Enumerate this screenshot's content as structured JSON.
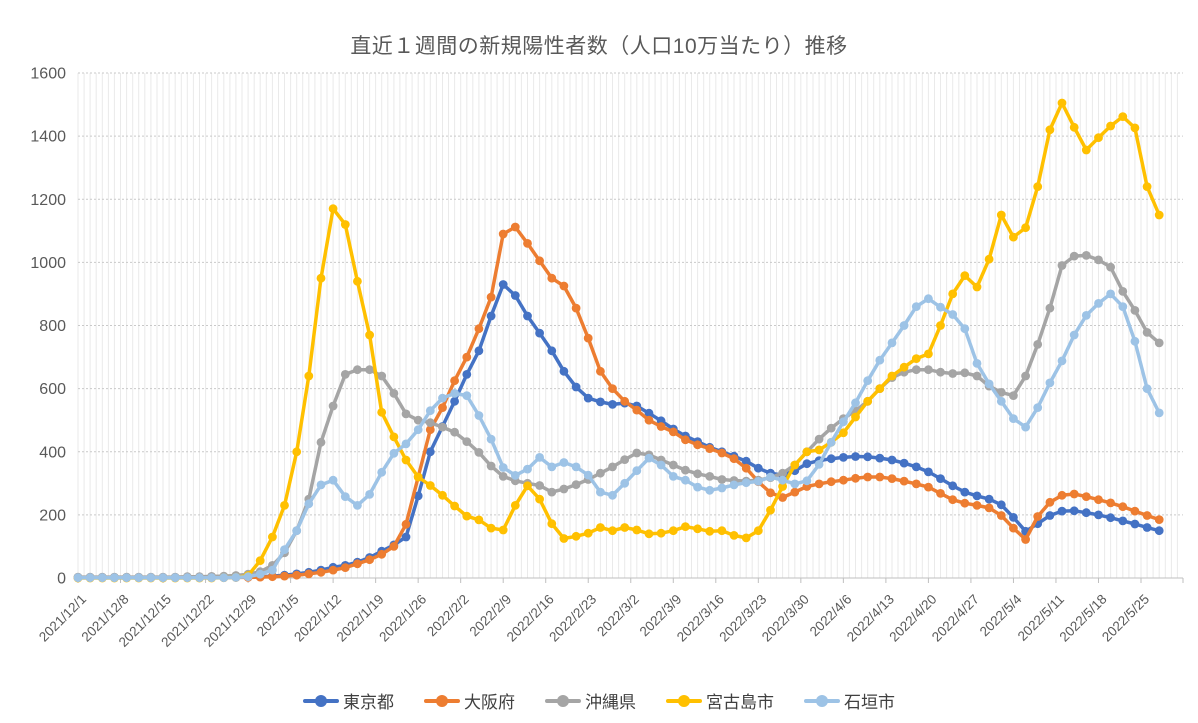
{
  "title": "直近１週間の新規陽性者数（人口10万当たり）推移",
  "y_axis": {
    "labels": [
      "0",
      "200",
      "400",
      "600",
      "800",
      "1000",
      "1200",
      "1400",
      "1600"
    ],
    "values": [
      0,
      200,
      400,
      600,
      800,
      1000,
      1200,
      1400,
      1600
    ]
  },
  "x_axis": {
    "tick_labels": [
      "2021/12/1",
      "2021/12/8",
      "2021/12/15",
      "2021/12/22",
      "2021/12/29",
      "2022/1/5",
      "2022/1/12",
      "2022/1/19",
      "2022/1/26",
      "2022/2/2",
      "2022/2/9",
      "2022/2/16",
      "2022/2/23",
      "2022/3/2",
      "2022/3/9",
      "2022/3/16",
      "2022/3/23",
      "2022/3/30",
      "2022/4/6",
      "2022/4/13",
      "2022/4/20",
      "2022/4/27",
      "2022/5/4",
      "2022/5/11",
      "2022/5/18",
      "2022/5/25"
    ],
    "tick_days": [
      0,
      7,
      14,
      21,
      28,
      35,
      42,
      49,
      56,
      63,
      70,
      77,
      84,
      91,
      98,
      105,
      112,
      119,
      126,
      133,
      140,
      147,
      154,
      161,
      168,
      175
    ]
  },
  "chart_data": {
    "type": "line",
    "title": "直近１週間の新規陽性者数（人口10万当たり）推移",
    "xlabel": "",
    "ylabel": "",
    "ylim": [
      0,
      1600
    ],
    "y_step": 200,
    "grid": "horizontal-dashed-major, vertical-light-minor-daily",
    "legend_position": "bottom",
    "x_dates": [
      "2021/12/1",
      "2021/12/3",
      "2021/12/5",
      "2021/12/7",
      "2021/12/9",
      "2021/12/11",
      "2021/12/13",
      "2021/12/15",
      "2021/12/17",
      "2021/12/19",
      "2021/12/21",
      "2021/12/23",
      "2021/12/25",
      "2021/12/27",
      "2021/12/29",
      "2021/12/31",
      "2022/1/2",
      "2022/1/4",
      "2022/1/6",
      "2022/1/8",
      "2022/1/10",
      "2022/1/12",
      "2022/1/14",
      "2022/1/16",
      "2022/1/18",
      "2022/1/20",
      "2022/1/22",
      "2022/1/24",
      "2022/1/26",
      "2022/1/28",
      "2022/1/30",
      "2022/2/1",
      "2022/2/3",
      "2022/2/5",
      "2022/2/7",
      "2022/2/9",
      "2022/2/11",
      "2022/2/13",
      "2022/2/15",
      "2022/2/17",
      "2022/2/19",
      "2022/2/21",
      "2022/2/23",
      "2022/2/25",
      "2022/2/27",
      "2022/3/1",
      "2022/3/3",
      "2022/3/5",
      "2022/3/7",
      "2022/3/9",
      "2022/3/11",
      "2022/3/13",
      "2022/3/15",
      "2022/3/17",
      "2022/3/19",
      "2022/3/21",
      "2022/3/23",
      "2022/3/25",
      "2022/3/27",
      "2022/3/29",
      "2022/3/31",
      "2022/4/2",
      "2022/4/4",
      "2022/4/6",
      "2022/4/8",
      "2022/4/10",
      "2022/4/12",
      "2022/4/14",
      "2022/4/16",
      "2022/4/18",
      "2022/4/20",
      "2022/4/22",
      "2022/4/24",
      "2022/4/26",
      "2022/4/28",
      "2022/4/30",
      "2022/5/2",
      "2022/5/4",
      "2022/5/6",
      "2022/5/8",
      "2022/5/10",
      "2022/5/12",
      "2022/5/14",
      "2022/5/16",
      "2022/5/18",
      "2022/5/20",
      "2022/5/22",
      "2022/5/24",
      "2022/5/26",
      "2022/5/28"
    ],
    "day_index": [
      0,
      2,
      4,
      6,
      8,
      10,
      12,
      14,
      16,
      18,
      20,
      22,
      24,
      26,
      28,
      30,
      32,
      34,
      36,
      38,
      40,
      42,
      44,
      46,
      48,
      50,
      52,
      54,
      56,
      58,
      60,
      62,
      64,
      66,
      68,
      70,
      72,
      74,
      76,
      78,
      80,
      82,
      84,
      86,
      88,
      90,
      92,
      94,
      96,
      98,
      100,
      102,
      104,
      106,
      108,
      110,
      112,
      114,
      116,
      118,
      120,
      122,
      124,
      126,
      128,
      130,
      132,
      134,
      136,
      138,
      140,
      142,
      144,
      146,
      148,
      150,
      152,
      154,
      156,
      158,
      160,
      162,
      164,
      166,
      168,
      170,
      172,
      174,
      176,
      178
    ],
    "series": [
      {
        "name": "東京都",
        "color": "#4472C4",
        "values": [
          2,
          2,
          2,
          2,
          2,
          2,
          2,
          2,
          2,
          2,
          2,
          2,
          2,
          2,
          3,
          4,
          6,
          9,
          13,
          18,
          25,
          34,
          40,
          50,
          65,
          85,
          105,
          130,
          260,
          400,
          480,
          560,
          645,
          720,
          830,
          930,
          895,
          830,
          776,
          720,
          655,
          605,
          570,
          558,
          550,
          554,
          545,
          522,
          498,
          472,
          450,
          432,
          414,
          400,
          386,
          370,
          348,
          332,
          326,
          340,
          362,
          372,
          378,
          382,
          385,
          384,
          380,
          374,
          364,
          352,
          336,
          315,
          292,
          272,
          260,
          250,
          232,
          192,
          148,
          172,
          198,
          212,
          213,
          207,
          200,
          191,
          181,
          171,
          160,
          150
        ]
      },
      {
        "name": "大阪府",
        "color": "#ED7D31",
        "values": [
          1,
          1,
          1,
          1,
          1,
          1,
          1,
          1,
          1,
          1,
          1,
          1,
          1,
          2,
          2,
          3,
          4,
          6,
          9,
          13,
          18,
          25,
          33,
          45,
          58,
          75,
          100,
          170,
          320,
          470,
          540,
          625,
          700,
          790,
          890,
          1090,
          1112,
          1060,
          1005,
          950,
          925,
          855,
          760,
          655,
          600,
          560,
          532,
          500,
          480,
          463,
          438,
          422,
          410,
          396,
          378,
          348,
          305,
          270,
          255,
          272,
          290,
          298,
          305,
          310,
          316,
          320,
          320,
          315,
          307,
          298,
          288,
          268,
          248,
          237,
          230,
          222,
          198,
          158,
          122,
          195,
          240,
          262,
          266,
          258,
          248,
          238,
          226,
          212,
          198,
          185
        ]
      },
      {
        "name": "沖縄県",
        "color": "#A5A5A5",
        "values": [
          3,
          3,
          3,
          3,
          3,
          3,
          3,
          3,
          3,
          4,
          4,
          5,
          6,
          8,
          12,
          20,
          40,
          80,
          150,
          250,
          430,
          545,
          645,
          660,
          660,
          640,
          585,
          520,
          500,
          492,
          478,
          462,
          432,
          398,
          355,
          322,
          308,
          300,
          293,
          272,
          282,
          296,
          312,
          332,
          352,
          375,
          396,
          390,
          374,
          358,
          342,
          330,
          322,
          312,
          309,
          307,
          310,
          318,
          332,
          358,
          400,
          440,
          475,
          505,
          530,
          560,
          600,
          635,
          652,
          660,
          660,
          652,
          648,
          650,
          640,
          608,
          588,
          578,
          640,
          740,
          855,
          990,
          1020,
          1022,
          1008,
          985,
          908,
          848,
          778,
          745
        ]
      },
      {
        "name": "宮古島市",
        "color": "#FFC000",
        "values": [
          0,
          0,
          0,
          0,
          0,
          0,
          0,
          0,
          0,
          0,
          0,
          0,
          1,
          2,
          8,
          55,
          130,
          230,
          400,
          640,
          950,
          1170,
          1120,
          940,
          770,
          525,
          447,
          374,
          320,
          293,
          262,
          228,
          196,
          184,
          158,
          152,
          230,
          292,
          250,
          172,
          125,
          132,
          142,
          160,
          150,
          160,
          152,
          140,
          142,
          150,
          163,
          156,
          148,
          150,
          135,
          127,
          150,
          215,
          290,
          358,
          400,
          406,
          430,
          460,
          510,
          560,
          600,
          640,
          668,
          695,
          710,
          800,
          900,
          958,
          922,
          1010,
          1150,
          1080,
          1110,
          1240,
          1420,
          1505,
          1428,
          1356,
          1395,
          1432,
          1462,
          1426,
          1240,
          1150
        ]
      },
      {
        "name": "石垣市",
        "color": "#9DC3E6",
        "values": [
          1,
          1,
          1,
          1,
          1,
          1,
          1,
          1,
          1,
          1,
          1,
          1,
          1,
          2,
          4,
          12,
          25,
          90,
          150,
          235,
          295,
          310,
          258,
          230,
          265,
          335,
          395,
          425,
          470,
          530,
          570,
          585,
          578,
          515,
          440,
          350,
          325,
          345,
          382,
          352,
          366,
          352,
          326,
          272,
          262,
          300,
          340,
          380,
          358,
          322,
          310,
          288,
          278,
          285,
          295,
          302,
          306,
          320,
          310,
          298,
          308,
          360,
          430,
          495,
          555,
          625,
          690,
          745,
          800,
          860,
          885,
          858,
          835,
          790,
          680,
          615,
          560,
          505,
          478,
          540,
          618,
          688,
          770,
          832,
          870,
          900,
          860,
          750,
          600,
          523
        ]
      }
    ]
  }
}
